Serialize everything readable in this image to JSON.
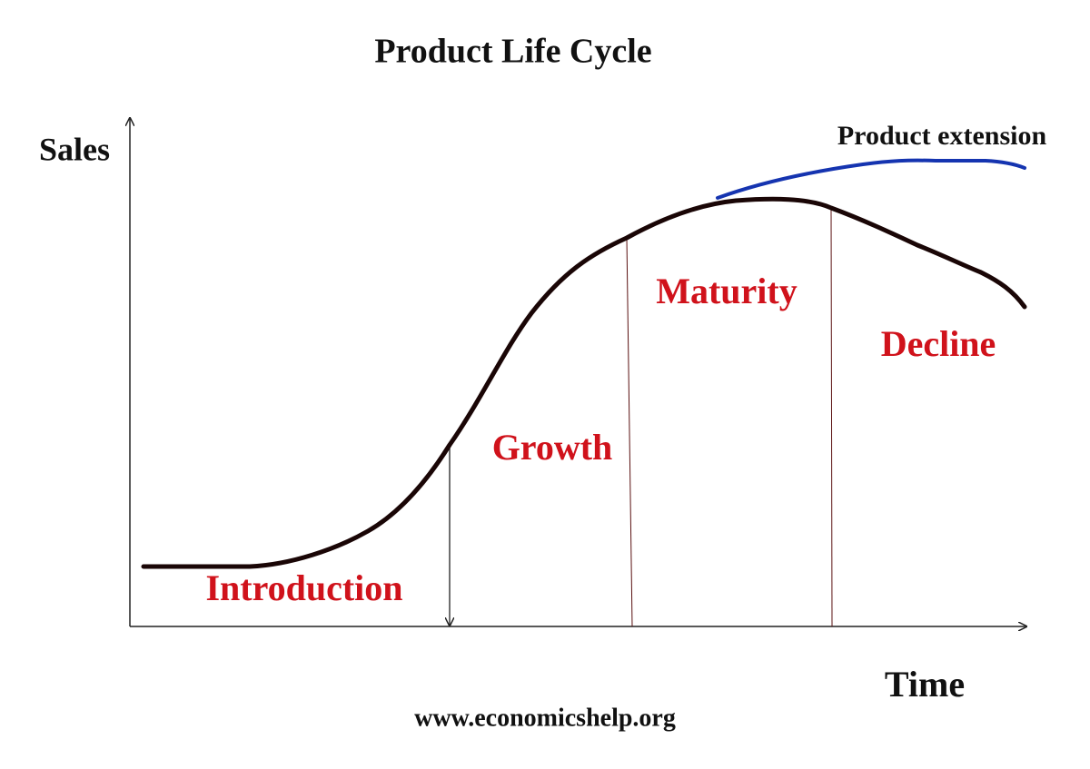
{
  "title": "Product Life Cycle",
  "axes": {
    "y_label": "Sales",
    "x_label": "Time"
  },
  "stages": [
    "Introduction",
    "Growth",
    "Maturity",
    "Decline"
  ],
  "extension_label": "Product extension",
  "footer": "www.economicshelp.org"
}
